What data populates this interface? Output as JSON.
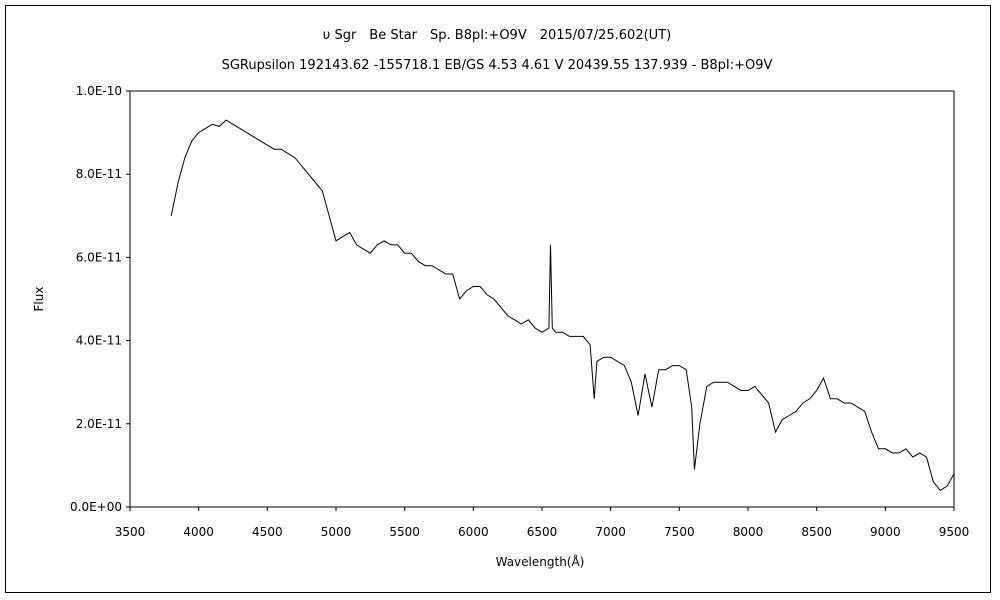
{
  "chart_data": {
    "type": "line",
    "title": "υ Sgr　Be Star　Sp. B8pI:+O9V　2015/07/25.602(UT)",
    "subtitle": "SGRupsilon 192143.62 -155718.1 EB/GS 4.53 4.61 V 20439.55 137.939 - B8pI:+O9V",
    "xlabel": "Wavelength(Å)",
    "ylabel": "Flux",
    "xlim": [
      3500,
      9500
    ],
    "ylim": [
      0,
      1e-10
    ],
    "xticks": [
      3500,
      4000,
      4500,
      5000,
      5500,
      6000,
      6500,
      7000,
      7500,
      8000,
      8500,
      9000,
      9500
    ],
    "xtick_labels": [
      "3500",
      "4000",
      "4500",
      "5000",
      "5500",
      "6000",
      "6500",
      "7000",
      "7500",
      "8000",
      "8500",
      "9000",
      "9500"
    ],
    "yticks": [
      0,
      2e-11,
      4e-11,
      6e-11,
      8e-11,
      1e-10
    ],
    "ytick_labels": [
      "0.0E+00",
      "2.0E-11",
      "4.0E-11",
      "6.0E-11",
      "8.0E-11",
      "1.0E-10"
    ],
    "grid": false,
    "legend": "none",
    "series": [
      {
        "x": [
          3800,
          3850,
          3900,
          3950,
          4000,
          4050,
          4100,
          4150,
          4200,
          4250,
          4300,
          4350,
          4400,
          4450,
          4500,
          4550,
          4600,
          4650,
          4700,
          4750,
          4800,
          4850,
          4900,
          4950,
          5000,
          5050,
          5100,
          5150,
          5200,
          5250,
          5300,
          5350,
          5400,
          5450,
          5500,
          5550,
          5600,
          5650,
          5700,
          5750,
          5800,
          5850,
          5900,
          5950,
          6000,
          6050,
          6100,
          6150,
          6200,
          6250,
          6300,
          6350,
          6400,
          6450,
          6500,
          6550,
          6562,
          6575,
          6600,
          6650,
          6700,
          6750,
          6800,
          6850,
          6880,
          6900,
          6950,
          7000,
          7050,
          7100,
          7150,
          7200,
          7250,
          7300,
          7350,
          7400,
          7450,
          7500,
          7550,
          7590,
          7610,
          7650,
          7700,
          7750,
          7800,
          7850,
          7900,
          7950,
          8000,
          8050,
          8100,
          8150,
          8200,
          8250,
          8300,
          8350,
          8400,
          8450,
          8500,
          8550,
          8600,
          8650,
          8700,
          8750,
          8800,
          8850,
          8900,
          8950,
          9000,
          9050,
          9100,
          9150,
          9200,
          9250,
          9300,
          9350,
          9400,
          9450,
          9500
        ],
        "y": [
          7e-11,
          7.8e-11,
          8.4e-11,
          8.8e-11,
          9e-11,
          9.1e-11,
          9.2e-11,
          9.15e-11,
          9.3e-11,
          9.2e-11,
          9.1e-11,
          9e-11,
          8.9e-11,
          8.8e-11,
          8.7e-11,
          8.6e-11,
          8.6e-11,
          8.5e-11,
          8.4e-11,
          8.2e-11,
          8e-11,
          7.8e-11,
          7.6e-11,
          7e-11,
          6.4e-11,
          6.5e-11,
          6.6e-11,
          6.3e-11,
          6.2e-11,
          6.1e-11,
          6.3e-11,
          6.4e-11,
          6.3e-11,
          6.3e-11,
          6.1e-11,
          6.1e-11,
          5.9e-11,
          5.8e-11,
          5.8e-11,
          5.7e-11,
          5.6e-11,
          5.6e-11,
          5e-11,
          5.2e-11,
          5.3e-11,
          5.3e-11,
          5.1e-11,
          5e-11,
          4.8e-11,
          4.6e-11,
          4.5e-11,
          4.4e-11,
          4.5e-11,
          4.3e-11,
          4.2e-11,
          4.3e-11,
          6.3e-11,
          4.3e-11,
          4.2e-11,
          4.2e-11,
          4.1e-11,
          4.1e-11,
          4.1e-11,
          3.9e-11,
          2.6e-11,
          3.5e-11,
          3.6e-11,
          3.6e-11,
          3.5e-11,
          3.4e-11,
          3e-11,
          2.2e-11,
          3.2e-11,
          2.4e-11,
          3.3e-11,
          3.3e-11,
          3.4e-11,
          3.4e-11,
          3.3e-11,
          2.4e-11,
          9e-12,
          2e-11,
          2.9e-11,
          3e-11,
          3e-11,
          3e-11,
          2.9e-11,
          2.8e-11,
          2.8e-11,
          2.9e-11,
          2.7e-11,
          2.5e-11,
          1.8e-11,
          2.1e-11,
          2.2e-11,
          2.3e-11,
          2.5e-11,
          2.6e-11,
          2.8e-11,
          3.1e-11,
          2.6e-11,
          2.6e-11,
          2.5e-11,
          2.5e-11,
          2.4e-11,
          2.3e-11,
          1.8e-11,
          1.4e-11,
          1.4e-11,
          1.3e-11,
          1.3e-11,
          1.4e-11,
          1.2e-11,
          1.3e-11,
          1.2e-11,
          6e-12,
          4e-12,
          5e-12,
          8e-12
        ]
      }
    ]
  }
}
